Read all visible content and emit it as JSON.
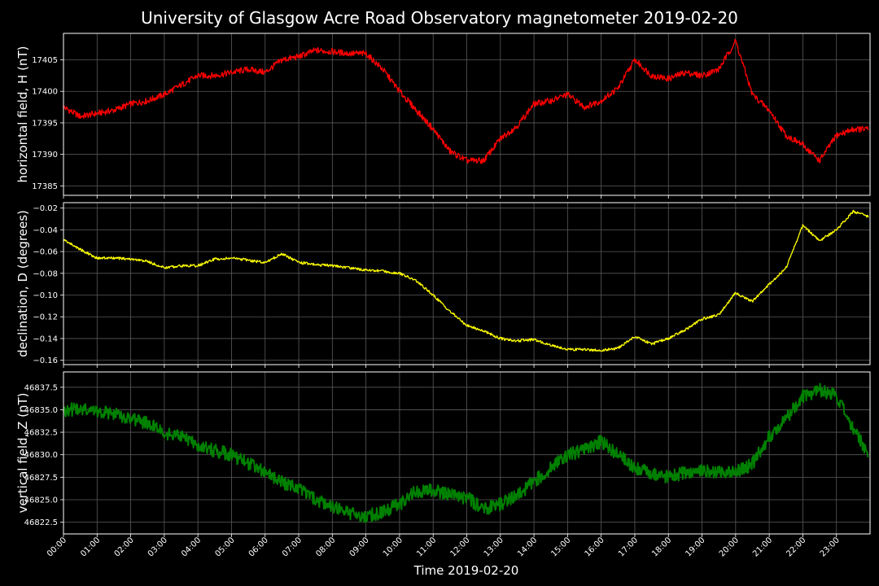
{
  "chart_title": "University of Glasgow Acre Road Observatory magnetometer 2019-02-20",
  "xlabel": "Time 2019-02-20",
  "x_ticks": [
    "00:00",
    "01:00",
    "02:00",
    "03:00",
    "04:00",
    "05:00",
    "06:00",
    "07:00",
    "08:00",
    "09:00",
    "10:00",
    "11:00",
    "12:00",
    "13:00",
    "14:00",
    "15:00",
    "16:00",
    "17:00",
    "18:00",
    "19:00",
    "20:00",
    "21:00",
    "22:00",
    "23:00"
  ],
  "colors": {
    "background": "#000000",
    "grid": "#5a5a5a",
    "H": "#ff0000",
    "D": "#ffff00",
    "Z": "#008000",
    "text": "#ffffff"
  },
  "chart_data": [
    {
      "type": "line",
      "ylabel": "horizontal field, H (nT)",
      "ylim": [
        17383.5,
        17409.2
      ],
      "yticks": [
        17385,
        17390,
        17395,
        17400,
        17405
      ],
      "ytick_labels": [
        "17385",
        "17390",
        "17395",
        "17400",
        "17405"
      ],
      "grid": true,
      "series": [
        {
          "color": "#ff0000",
          "x_hours": [
            0,
            0.5,
            1,
            1.5,
            2,
            2.5,
            3,
            3.5,
            4,
            4.5,
            5,
            5.5,
            6,
            6.5,
            7,
            7.5,
            8,
            8.5,
            9,
            9.5,
            10,
            10.5,
            11,
            11.5,
            12,
            12.5,
            13,
            13.5,
            14,
            14.5,
            15,
            15.5,
            16,
            16.5,
            17,
            17.5,
            18,
            18.5,
            19,
            19.5,
            20,
            20.5,
            21,
            21.5,
            22,
            22.5,
            23,
            23.5,
            23.95
          ],
          "values": [
            17397.5,
            17396,
            17396.5,
            17397,
            17398,
            17398.5,
            17399.5,
            17401,
            17402.5,
            17402.5,
            17403,
            17403.5,
            17403,
            17405,
            17405.5,
            17406.5,
            17406.3,
            17406,
            17406,
            17403.5,
            17400,
            17397,
            17394,
            17390.5,
            17389,
            17389,
            17392.5,
            17394.5,
            17398,
            17398.5,
            17399.5,
            17397.5,
            17398.5,
            17400.5,
            17405,
            17402.5,
            17402,
            17403,
            17402.5,
            17403.5,
            17408,
            17399.5,
            17397,
            17393,
            17391.5,
            17389,
            17393,
            17394,
            17394
          ]
        }
      ]
    },
    {
      "type": "line",
      "ylabel": "declination, D (degrees)",
      "ylim": [
        -0.164,
        -0.015
      ],
      "yticks": [
        -0.16,
        -0.14,
        -0.12,
        -0.1,
        -0.08,
        -0.06,
        -0.04,
        -0.02
      ],
      "ytick_labels": [
        "−0.16",
        "−0.14",
        "−0.12",
        "−0.10",
        "−0.08",
        "−0.06",
        "−0.04",
        "−0.02"
      ],
      "grid": true,
      "series": [
        {
          "color": "#ffff00",
          "x_hours": [
            0,
            0.5,
            1,
            1.5,
            2,
            2.5,
            3,
            3.5,
            4,
            4.5,
            5,
            5.5,
            6,
            6.5,
            7,
            7.5,
            8,
            8.5,
            9,
            9.5,
            10,
            10.5,
            11,
            11.5,
            12,
            12.5,
            13,
            13.5,
            14,
            14.5,
            15,
            15.5,
            16,
            16.5,
            17,
            17.5,
            18,
            18.5,
            19,
            19.5,
            20,
            20.5,
            21,
            21.5,
            22,
            22.5,
            23,
            23.5,
            23.95
          ],
          "values": [
            -0.049,
            -0.058,
            -0.066,
            -0.066,
            -0.067,
            -0.069,
            -0.075,
            -0.073,
            -0.073,
            -0.067,
            -0.066,
            -0.068,
            -0.07,
            -0.062,
            -0.07,
            -0.072,
            -0.073,
            -0.075,
            -0.077,
            -0.078,
            -0.08,
            -0.087,
            -0.1,
            -0.115,
            -0.128,
            -0.133,
            -0.14,
            -0.142,
            -0.141,
            -0.146,
            -0.15,
            -0.15,
            -0.151,
            -0.149,
            -0.138,
            -0.145,
            -0.14,
            -0.132,
            -0.122,
            -0.118,
            -0.098,
            -0.106,
            -0.09,
            -0.075,
            -0.036,
            -0.05,
            -0.04,
            -0.023,
            -0.028
          ]
        }
      ]
    },
    {
      "type": "line",
      "ylabel": "vertical field, Z (nT)",
      "ylim": [
        46821.2,
        46839.2
      ],
      "yticks": [
        46822.5,
        46825.0,
        46827.5,
        46830.0,
        46832.5,
        46835.0,
        46837.5
      ],
      "ytick_labels": [
        "46822.5",
        "46825.0",
        "46827.5",
        "46830.0",
        "46832.5",
        "46835.0",
        "46837.5"
      ],
      "grid": true,
      "series": [
        {
          "color": "#008000",
          "x_hours": [
            0,
            0.5,
            1,
            1.5,
            2,
            2.5,
            3,
            3.5,
            4,
            4.5,
            5,
            5.5,
            6,
            6.5,
            7,
            7.5,
            8,
            8.5,
            9,
            9.5,
            10,
            10.5,
            11,
            11.5,
            12,
            12.5,
            13,
            13.5,
            14,
            14.5,
            15,
            15.5,
            16,
            16.5,
            17,
            17.5,
            18,
            18.5,
            19,
            19.5,
            20,
            20.5,
            21,
            21.5,
            22,
            22.5,
            23,
            23.5,
            23.95
          ],
          "values": [
            46835,
            46835,
            46834.8,
            46834.5,
            46834,
            46833.5,
            46832.5,
            46832,
            46831,
            46830.5,
            46830,
            46829,
            46828,
            46827,
            46826.2,
            46825,
            46824.2,
            46823.5,
            46823.2,
            46823.6,
            46824.5,
            46826,
            46826,
            46825.5,
            46825.2,
            46824,
            46824.5,
            46825.5,
            46827,
            46828.5,
            46830,
            46830.5,
            46831.5,
            46830,
            46828.5,
            46828,
            46827.5,
            46828,
            46828.3,
            46828,
            46828,
            46829,
            46832,
            46834,
            46836.5,
            46837.2,
            46836.5,
            46833,
            46830
          ]
        }
      ]
    }
  ]
}
